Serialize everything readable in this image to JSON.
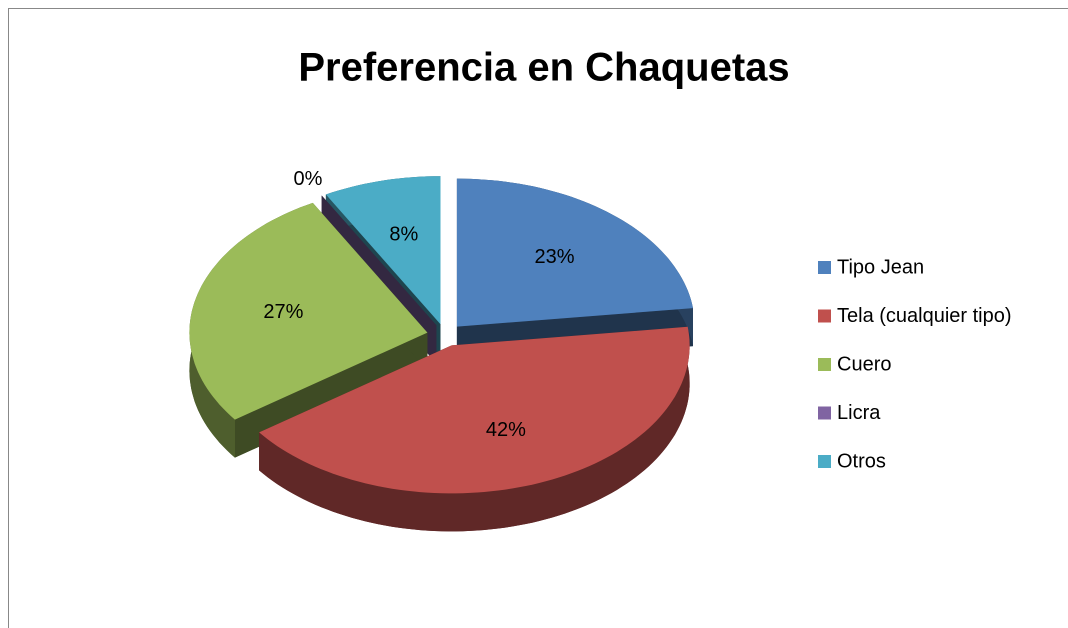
{
  "chart_data": {
    "type": "pie",
    "title": "Preferencia en Chaquetas",
    "categories": [
      "Tipo Jean",
      "Tela (cualquier tipo)",
      "Cuero",
      "Licra",
      "Otros"
    ],
    "values": [
      23,
      42,
      27,
      0,
      8
    ],
    "value_labels": [
      "23%",
      "42%",
      "27%",
      "0%",
      "8%"
    ],
    "colors": [
      "#4f81bd",
      "#c0504d",
      "#9bbb59",
      "#8064a2",
      "#4bacc6"
    ],
    "legend": "right"
  }
}
